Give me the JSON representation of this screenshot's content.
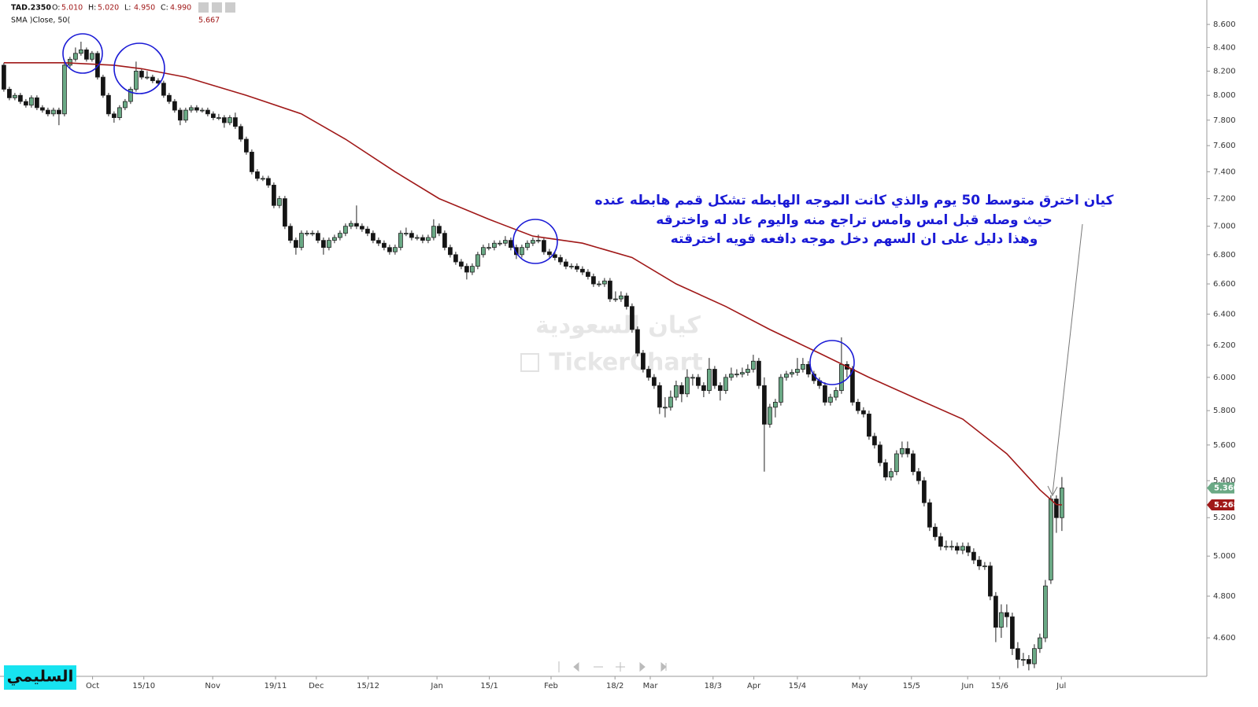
{
  "chart_data": {
    "type": "candlestick",
    "symbol": "TAD.2350",
    "ohlc_header": [
      {
        "label": "O:",
        "value": "5.010"
      },
      {
        "label": "H:",
        "value": "5.020"
      },
      {
        "label": "L:",
        "value": "4.950"
      },
      {
        "label": "C:",
        "value": "4.990"
      }
    ],
    "sma_header": {
      "name": "SMA )Close, 50(",
      "value": "5.667"
    },
    "log_scale": true,
    "ylim": [
      4.423,
      8.817
    ],
    "yticks": [
      {
        "value": 4.6,
        "label": "4.600"
      },
      {
        "value": 4.8,
        "label": "4.800"
      },
      {
        "value": 5.0,
        "label": "5.000"
      },
      {
        "value": 5.2,
        "label": "5.200"
      },
      {
        "value": 5.4,
        "label": "5.400"
      },
      {
        "value": 5.6,
        "label": "5.600"
      },
      {
        "value": 5.8,
        "label": "5.800"
      },
      {
        "value": 6.0,
        "label": "6.000"
      },
      {
        "value": 6.2,
        "label": "6.200"
      },
      {
        "value": 6.4,
        "label": "6.400"
      },
      {
        "value": 6.6,
        "label": "6.600"
      },
      {
        "value": 6.8,
        "label": "6.800"
      },
      {
        "value": 7.0,
        "label": "7.000"
      },
      {
        "value": 7.2,
        "label": "7.200"
      },
      {
        "value": 7.4,
        "label": "7.400"
      },
      {
        "value": 7.6,
        "label": "7.600"
      },
      {
        "value": 7.8,
        "label": "7.800"
      },
      {
        "value": 8.0,
        "label": "8.000"
      },
      {
        "value": 8.2,
        "label": "8.200"
      },
      {
        "value": 8.4,
        "label": "8.400"
      },
      {
        "value": 8.6,
        "label": "8.600"
      }
    ],
    "xlim": [
      -0.7,
      218.3
    ],
    "xticks": [
      {
        "value": 16.1,
        "label": "Oct"
      },
      {
        "value": 25.4,
        "label": "15/10"
      },
      {
        "value": 37.9,
        "label": "Nov"
      },
      {
        "value": 49.3,
        "label": "19/11"
      },
      {
        "value": 56.7,
        "label": "Dec"
      },
      {
        "value": 66.1,
        "label": "15/12"
      },
      {
        "value": 78.6,
        "label": "Jan"
      },
      {
        "value": 88.1,
        "label": "15/1"
      },
      {
        "value": 99.3,
        "label": "Feb"
      },
      {
        "value": 110.9,
        "label": "18/2"
      },
      {
        "value": 117.3,
        "label": "Mar"
      },
      {
        "value": 128.7,
        "label": "18/3"
      },
      {
        "value": 136.1,
        "label": "Apr"
      },
      {
        "value": 144.0,
        "label": "15/4"
      },
      {
        "value": 155.3,
        "label": "May"
      },
      {
        "value": 164.7,
        "label": "15/5"
      },
      {
        "value": 174.9,
        "label": "Jun"
      },
      {
        "value": 180.7,
        "label": "15/6"
      },
      {
        "value": 191.9,
        "label": "Jul"
      }
    ],
    "up_color": "#6aa985",
    "down_color": "#141414",
    "candles": [
      [
        8.25,
        8.27,
        8.03,
        8.05
      ],
      [
        8.05,
        8.07,
        7.96,
        7.98
      ],
      [
        7.98,
        8.02,
        7.96,
        8.0
      ],
      [
        8.0,
        8.02,
        7.93,
        7.95
      ],
      [
        7.95,
        7.97,
        7.9,
        7.92
      ],
      [
        7.92,
        8.0,
        7.9,
        7.98
      ],
      [
        7.98,
        8.0,
        7.88,
        7.9
      ],
      [
        7.9,
        7.92,
        7.86,
        7.88
      ],
      [
        7.88,
        7.9,
        7.83,
        7.85
      ],
      [
        7.85,
        7.9,
        7.83,
        7.88
      ],
      [
        7.88,
        7.9,
        7.76,
        7.85
      ],
      [
        7.85,
        8.27,
        7.83,
        8.25
      ],
      [
        8.25,
        8.32,
        8.23,
        8.3
      ],
      [
        8.3,
        8.4,
        8.28,
        8.35
      ],
      [
        8.35,
        8.45,
        8.33,
        8.38
      ],
      [
        8.38,
        8.4,
        8.28,
        8.3
      ],
      [
        8.3,
        8.37,
        8.28,
        8.35
      ],
      [
        8.35,
        8.37,
        8.13,
        8.15
      ],
      [
        8.15,
        8.17,
        7.98,
        8.0
      ],
      [
        8.0,
        8.02,
        7.83,
        7.85
      ],
      [
        7.85,
        7.87,
        7.78,
        7.82
      ],
      [
        7.82,
        7.92,
        7.8,
        7.9
      ],
      [
        7.9,
        7.97,
        7.88,
        7.95
      ],
      [
        7.95,
        8.07,
        7.93,
        8.05
      ],
      [
        8.05,
        8.28,
        8.03,
        8.2
      ],
      [
        8.2,
        8.22,
        8.13,
        8.15
      ],
      [
        8.15,
        8.2,
        8.13,
        8.15
      ],
      [
        8.15,
        8.17,
        8.1,
        8.12
      ],
      [
        8.12,
        8.14,
        8.08,
        8.1
      ],
      [
        8.1,
        8.12,
        7.98,
        8.0
      ],
      [
        8.0,
        8.02,
        7.93,
        7.95
      ],
      [
        7.95,
        7.97,
        7.86,
        7.88
      ],
      [
        7.88,
        7.9,
        7.76,
        7.8
      ],
      [
        7.8,
        7.9,
        7.78,
        7.88
      ],
      [
        7.88,
        7.92,
        7.86,
        7.9
      ],
      [
        7.9,
        7.92,
        7.86,
        7.88
      ],
      [
        7.88,
        7.9,
        7.86,
        7.88
      ],
      [
        7.88,
        7.9,
        7.83,
        7.85
      ],
      [
        7.85,
        7.87,
        7.8,
        7.82
      ],
      [
        7.82,
        7.85,
        7.8,
        7.82
      ],
      [
        7.82,
        7.84,
        7.74,
        7.78
      ],
      [
        7.78,
        7.84,
        7.76,
        7.82
      ],
      [
        7.82,
        7.86,
        7.73,
        7.75
      ],
      [
        7.75,
        7.77,
        7.63,
        7.65
      ],
      [
        7.65,
        7.67,
        7.53,
        7.55
      ],
      [
        7.55,
        7.57,
        7.38,
        7.4
      ],
      [
        7.4,
        7.42,
        7.33,
        7.35
      ],
      [
        7.35,
        7.37,
        7.33,
        7.35
      ],
      [
        7.35,
        7.37,
        7.28,
        7.3
      ],
      [
        7.3,
        7.32,
        7.13,
        7.15
      ],
      [
        7.15,
        7.22,
        7.13,
        7.2
      ],
      [
        7.2,
        7.22,
        6.98,
        7.0
      ],
      [
        7.0,
        7.02,
        6.88,
        6.9
      ],
      [
        6.9,
        6.92,
        6.8,
        6.85
      ],
      [
        6.85,
        6.97,
        6.83,
        6.95
      ],
      [
        6.95,
        6.97,
        6.93,
        6.95
      ],
      [
        6.95,
        6.97,
        6.93,
        6.95
      ],
      [
        6.95,
        6.97,
        6.88,
        6.9
      ],
      [
        6.9,
        6.92,
        6.8,
        6.85
      ],
      [
        6.85,
        6.92,
        6.83,
        6.9
      ],
      [
        6.9,
        6.94,
        6.88,
        6.92
      ],
      [
        6.92,
        6.97,
        6.9,
        6.95
      ],
      [
        6.95,
        7.02,
        6.93,
        7.0
      ],
      [
        7.0,
        7.04,
        6.98,
        7.02
      ],
      [
        7.02,
        7.15,
        6.98,
        7.0
      ],
      [
        7.0,
        7.02,
        6.96,
        6.98
      ],
      [
        6.98,
        7.0,
        6.93,
        6.95
      ],
      [
        6.95,
        6.97,
        6.88,
        6.9
      ],
      [
        6.9,
        6.92,
        6.86,
        6.88
      ],
      [
        6.88,
        6.9,
        6.83,
        6.85
      ],
      [
        6.85,
        6.87,
        6.8,
        6.82
      ],
      [
        6.82,
        6.87,
        6.8,
        6.85
      ],
      [
        6.85,
        6.97,
        6.83,
        6.95
      ],
      [
        6.95,
        6.99,
        6.93,
        6.95
      ],
      [
        6.95,
        6.97,
        6.9,
        6.92
      ],
      [
        6.92,
        6.94,
        6.9,
        6.92
      ],
      [
        6.92,
        6.94,
        6.88,
        6.9
      ],
      [
        6.9,
        6.94,
        6.88,
        6.92
      ],
      [
        6.92,
        7.05,
        6.9,
        7.0
      ],
      [
        7.0,
        7.02,
        6.93,
        6.95
      ],
      [
        6.95,
        6.97,
        6.83,
        6.85
      ],
      [
        6.85,
        6.87,
        6.78,
        6.8
      ],
      [
        6.8,
        6.82,
        6.73,
        6.75
      ],
      [
        6.75,
        6.77,
        6.7,
        6.72
      ],
      [
        6.72,
        6.74,
        6.63,
        6.68
      ],
      [
        6.68,
        6.74,
        6.66,
        6.72
      ],
      [
        6.72,
        6.82,
        6.7,
        6.8
      ],
      [
        6.8,
        6.87,
        6.78,
        6.85
      ],
      [
        6.85,
        6.88,
        6.83,
        6.85
      ],
      [
        6.85,
        6.9,
        6.83,
        6.88
      ],
      [
        6.88,
        6.9,
        6.86,
        6.88
      ],
      [
        6.88,
        6.93,
        6.86,
        6.9
      ],
      [
        6.9,
        6.92,
        6.83,
        6.85
      ],
      [
        6.85,
        6.87,
        6.77,
        6.8
      ],
      [
        6.8,
        6.87,
        6.78,
        6.85
      ],
      [
        6.85,
        6.9,
        6.83,
        6.88
      ],
      [
        6.88,
        6.92,
        6.86,
        6.9
      ],
      [
        6.9,
        6.94,
        6.88,
        6.9
      ],
      [
        6.9,
        6.92,
        6.8,
        6.82
      ],
      [
        6.82,
        6.84,
        6.78,
        6.8
      ],
      [
        6.8,
        6.82,
        6.76,
        6.78
      ],
      [
        6.78,
        6.8,
        6.73,
        6.75
      ],
      [
        6.75,
        6.77,
        6.7,
        6.72
      ],
      [
        6.72,
        6.74,
        6.7,
        6.72
      ],
      [
        6.72,
        6.74,
        6.68,
        6.7
      ],
      [
        6.7,
        6.72,
        6.66,
        6.68
      ],
      [
        6.68,
        6.7,
        6.63,
        6.65
      ],
      [
        6.65,
        6.67,
        6.58,
        6.6
      ],
      [
        6.6,
        6.62,
        6.58,
        6.6
      ],
      [
        6.6,
        6.64,
        6.58,
        6.62
      ],
      [
        6.62,
        6.64,
        6.48,
        6.5
      ],
      [
        6.5,
        6.55,
        6.48,
        6.5
      ],
      [
        6.5,
        6.55,
        6.48,
        6.52
      ],
      [
        6.52,
        6.54,
        6.43,
        6.45
      ],
      [
        6.45,
        6.47,
        6.28,
        6.3
      ],
      [
        6.3,
        6.32,
        6.13,
        6.15
      ],
      [
        6.15,
        6.17,
        6.03,
        6.05
      ],
      [
        6.05,
        6.07,
        5.98,
        6.0
      ],
      [
        6.0,
        6.02,
        5.93,
        5.95
      ],
      [
        5.95,
        5.97,
        5.78,
        5.82
      ],
      [
        5.82,
        5.88,
        5.76,
        5.82
      ],
      [
        5.82,
        5.92,
        5.8,
        5.88
      ],
      [
        5.88,
        5.98,
        5.86,
        5.95
      ],
      [
        5.95,
        5.97,
        5.85,
        5.9
      ],
      [
        5.9,
        6.05,
        5.88,
        6.0
      ],
      [
        6.0,
        6.02,
        5.95,
        6.0
      ],
      [
        6.0,
        6.02,
        5.93,
        5.95
      ],
      [
        5.95,
        5.97,
        5.88,
        5.92
      ],
      [
        5.92,
        6.12,
        5.9,
        6.05
      ],
      [
        6.05,
        6.07,
        5.93,
        5.95
      ],
      [
        5.95,
        5.97,
        5.86,
        5.92
      ],
      [
        5.92,
        6.02,
        5.9,
        6.0
      ],
      [
        6.0,
        6.06,
        5.98,
        6.02
      ],
      [
        6.02,
        6.05,
        6.0,
        6.02
      ],
      [
        6.02,
        6.06,
        6.0,
        6.03
      ],
      [
        6.03,
        6.08,
        6.01,
        6.05
      ],
      [
        6.05,
        6.14,
        6.03,
        6.1
      ],
      [
        6.1,
        6.12,
        5.93,
        5.95
      ],
      [
        5.95,
        6.0,
        5.45,
        5.72
      ],
      [
        5.72,
        5.84,
        5.7,
        5.82
      ],
      [
        5.82,
        5.87,
        5.76,
        5.85
      ],
      [
        5.85,
        6.02,
        5.83,
        6.0
      ],
      [
        6.0,
        6.04,
        5.98,
        6.02
      ],
      [
        6.02,
        6.05,
        6.0,
        6.03
      ],
      [
        6.03,
        6.12,
        6.01,
        6.05
      ],
      [
        6.05,
        6.12,
        6.03,
        6.08
      ],
      [
        6.08,
        6.1,
        6.0,
        6.02
      ],
      [
        6.02,
        6.04,
        5.96,
        5.98
      ],
      [
        5.98,
        6.0,
        5.93,
        5.95
      ],
      [
        5.95,
        5.97,
        5.83,
        5.85
      ],
      [
        5.85,
        5.9,
        5.83,
        5.88
      ],
      [
        5.88,
        5.94,
        5.86,
        5.92
      ],
      [
        5.92,
        6.25,
        5.9,
        6.08
      ],
      [
        6.08,
        6.1,
        6.0,
        6.05
      ],
      [
        6.05,
        6.07,
        5.83,
        5.85
      ],
      [
        5.85,
        5.87,
        5.78,
        5.8
      ],
      [
        5.8,
        5.82,
        5.76,
        5.78
      ],
      [
        5.78,
        5.8,
        5.63,
        5.65
      ],
      [
        5.65,
        5.67,
        5.58,
        5.6
      ],
      [
        5.6,
        5.62,
        5.48,
        5.5
      ],
      [
        5.5,
        5.52,
        5.4,
        5.42
      ],
      [
        5.42,
        5.47,
        5.4,
        5.45
      ],
      [
        5.45,
        5.57,
        5.43,
        5.55
      ],
      [
        5.55,
        5.62,
        5.53,
        5.58
      ],
      [
        5.58,
        5.62,
        5.53,
        5.55
      ],
      [
        5.55,
        5.57,
        5.43,
        5.45
      ],
      [
        5.45,
        5.47,
        5.38,
        5.4
      ],
      [
        5.4,
        5.42,
        5.26,
        5.28
      ],
      [
        5.28,
        5.3,
        5.13,
        5.15
      ],
      [
        5.15,
        5.17,
        5.08,
        5.1
      ],
      [
        5.1,
        5.12,
        5.03,
        5.05
      ],
      [
        5.05,
        5.08,
        5.03,
        5.05
      ],
      [
        5.05,
        5.08,
        5.03,
        5.05
      ],
      [
        5.05,
        5.07,
        5.01,
        5.03
      ],
      [
        5.03,
        5.07,
        5.01,
        5.05
      ],
      [
        5.05,
        5.07,
        5.0,
        5.02
      ],
      [
        5.02,
        5.04,
        4.96,
        4.98
      ],
      [
        4.98,
        5.0,
        4.93,
        4.95
      ],
      [
        4.95,
        4.97,
        4.93,
        4.95
      ],
      [
        4.95,
        4.97,
        4.78,
        4.8
      ],
      [
        4.8,
        4.82,
        4.58,
        4.65
      ],
      [
        4.65,
        4.76,
        4.6,
        4.72
      ],
      [
        4.72,
        4.76,
        4.65,
        4.7
      ],
      [
        4.7,
        4.72,
        4.52,
        4.55
      ],
      [
        4.55,
        4.58,
        4.46,
        4.5
      ],
      [
        4.5,
        4.53,
        4.47,
        4.5
      ],
      [
        4.5,
        4.52,
        4.45,
        4.48
      ],
      [
        4.48,
        4.57,
        4.46,
        4.55
      ],
      [
        4.55,
        4.62,
        4.53,
        4.6
      ],
      [
        4.6,
        4.88,
        4.58,
        4.85
      ],
      [
        4.88,
        5.32,
        4.86,
        5.3
      ],
      [
        5.3,
        5.32,
        5.12,
        5.2
      ],
      [
        5.2,
        5.42,
        5.13,
        5.36
      ]
    ],
    "sma": {
      "color": "#a01818",
      "x": [
        0,
        11,
        20,
        25,
        33,
        44,
        54,
        62,
        71,
        79,
        88,
        96,
        105,
        114,
        122,
        131,
        139,
        148,
        157,
        165,
        174,
        182,
        188,
        191,
        192
      ],
      "values": [
        8.27,
        8.27,
        8.25,
        8.22,
        8.15,
        8.0,
        7.85,
        7.65,
        7.4,
        7.2,
        7.05,
        6.93,
        6.88,
        6.78,
        6.6,
        6.45,
        6.3,
        6.15,
        6.0,
        5.88,
        5.75,
        5.55,
        5.35,
        5.27,
        5.268
      ]
    },
    "last_price": {
      "value": 5.36,
      "label": "5.360",
      "color": "#6aa985"
    },
    "sma_last": {
      "value": 5.268,
      "label": "5.268",
      "color": "#a01818"
    },
    "annotation": [
      "كيان اخترق متوسط 50 يوم والذي كانت الموجه الهابطه تشكل قمم هابطه عنده",
      "حيث وصله قبل امس وامس تراجع منه واليوم عاد له واخترقه",
      "وهذا دليل على ان السهم دخل موجه دافعه قويه اخترقته"
    ],
    "watermark": [
      "كيان السعودية",
      "TickerChart"
    ],
    "author": "السليمي"
  }
}
